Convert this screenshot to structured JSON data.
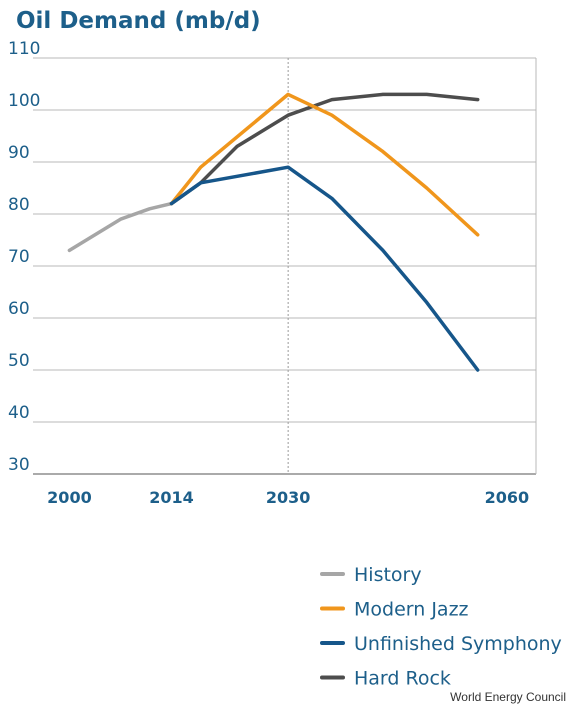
{
  "chart_data": {
    "type": "line",
    "title": "Oil Demand (mb/d)",
    "xlabel": "",
    "ylabel": "",
    "xlim": [
      2000,
      2060
    ],
    "ylim": [
      30,
      110
    ],
    "x_ticks": [
      2000,
      2014,
      2030,
      2060
    ],
    "y_ticks": [
      30,
      40,
      50,
      60,
      70,
      80,
      90,
      100,
      110
    ],
    "grid": "horizontal",
    "reference_line_x": 2030,
    "legend_position": "bottom-right",
    "series": [
      {
        "name": "History",
        "color": "#a6a6a6",
        "x": [
          2000,
          2007,
          2011,
          2014
        ],
        "y": [
          73,
          79,
          81,
          82
        ]
      },
      {
        "name": "Modern Jazz",
        "color": "#f0961c",
        "x": [
          2014,
          2018,
          2030,
          2036,
          2043,
          2049,
          2056
        ],
        "y": [
          82,
          89,
          103,
          99,
          92,
          85,
          76
        ]
      },
      {
        "name": "Unfinished Symphony",
        "color": "#16568a",
        "x": [
          2014,
          2018,
          2030,
          2036,
          2043,
          2049,
          2056
        ],
        "y": [
          82,
          86,
          89,
          83,
          73,
          63,
          50
        ]
      },
      {
        "name": "Hard Rock",
        "color": "#4d4d4d",
        "x": [
          2014,
          2018,
          2023,
          2030,
          2036,
          2043,
          2049,
          2056
        ],
        "y": [
          82,
          86,
          93,
          99,
          102,
          103,
          103,
          102
        ]
      }
    ]
  },
  "source": "World Energy Council"
}
